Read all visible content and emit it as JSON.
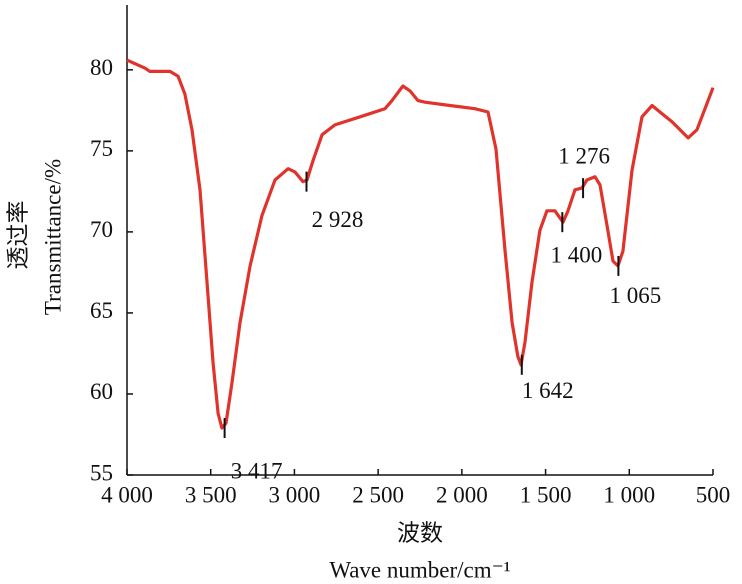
{
  "chart_data": {
    "type": "line",
    "y_label_lines": [
      "透过率",
      "Transmittance/%"
    ],
    "x_label_lines": [
      "波数",
      "Wave number/cm⁻¹"
    ],
    "x": [
      4000,
      3892,
      3863,
      3743,
      3695,
      3654,
      3612,
      3564,
      3522,
      3486,
      3456,
      3433,
      3409,
      3373,
      3325,
      3265,
      3194,
      3116,
      3038,
      2997,
      2949,
      2925,
      2889,
      2835,
      2758,
      2608,
      2459,
      2417,
      2352,
      2310,
      2262,
      2220,
      2071,
      1922,
      1844,
      1796,
      1742,
      1700,
      1665,
      1647,
      1623,
      1581,
      1534,
      1492,
      1444,
      1396,
      1366,
      1324,
      1283,
      1253,
      1205,
      1175,
      1133,
      1097,
      1068,
      1038,
      984,
      924,
      864,
      817,
      745,
      649,
      596,
      548,
      500
    ],
    "series": [
      {
        "color": "#e0332c",
        "values": [
          80.6,
          80.1,
          79.9,
          79.9,
          79.6,
          78.5,
          76.3,
          72.6,
          66.9,
          61.9,
          58.8,
          57.9,
          58.2,
          60.7,
          64.4,
          67.9,
          71.0,
          73.2,
          73.9,
          73.7,
          73.1,
          73.2,
          74.4,
          76.0,
          76.6,
          77.1,
          77.6,
          78.1,
          79.0,
          78.7,
          78.1,
          78.0,
          77.8,
          77.6,
          77.4,
          75.1,
          68.8,
          64.4,
          62.3,
          61.8,
          63.2,
          66.9,
          70.1,
          71.3,
          71.3,
          70.6,
          71.3,
          72.6,
          72.7,
          73.2,
          73.4,
          72.9,
          70.4,
          68.2,
          67.9,
          68.8,
          73.8,
          77.1,
          77.8,
          77.4,
          76.8,
          75.8,
          76.3,
          77.6,
          78.9
        ]
      }
    ],
    "annotations": [
      {
        "x": 3417,
        "y": 57.9,
        "label": "3 417"
      },
      {
        "x": 2928,
        "y": 73.1,
        "label": "2 928"
      },
      {
        "x": 1642,
        "y": 61.8,
        "label": "1 642"
      },
      {
        "x": 1400,
        "y": 70.6,
        "label": "1 400"
      },
      {
        "x": 1276,
        "y": 72.7,
        "label": "1 276"
      },
      {
        "x": 1065,
        "y": 67.9,
        "label": "1 065"
      }
    ],
    "xlim": [
      4000,
      500
    ],
    "xticks": [
      {
        "value": 4000,
        "label": "4 000"
      },
      {
        "value": 3500,
        "label": "3 500"
      },
      {
        "value": 3000,
        "label": "3 000"
      },
      {
        "value": 2500,
        "label": "2 500"
      },
      {
        "value": 2000,
        "label": "2 000"
      },
      {
        "value": 1500,
        "label": "1 500"
      },
      {
        "value": 1000,
        "label": "1 000"
      },
      500
    ],
    "ylim": [
      55,
      84
    ],
    "yticks": [
      55,
      60,
      65,
      70,
      75,
      80
    ]
  }
}
